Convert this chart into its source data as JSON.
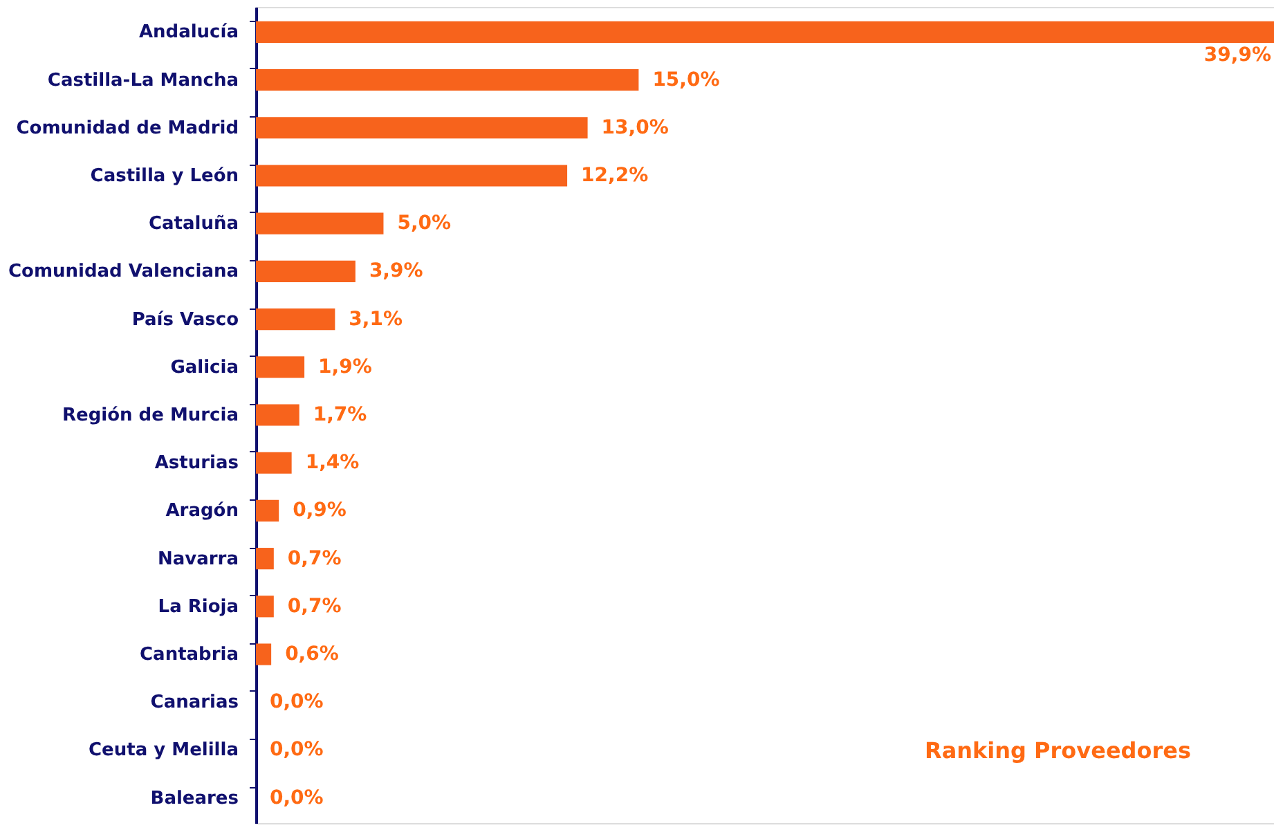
{
  "chart_data": {
    "type": "bar",
    "orientation": "horizontal",
    "title": "Ranking Proveedores",
    "categories": [
      "Andalucía",
      "Castilla-La Mancha",
      "Comunidad de Madrid",
      "Castilla y León",
      "Cataluña",
      "Comunidad Valenciana",
      "País Vasco",
      "Galicia",
      "Región de Murcia",
      "Asturias",
      "Aragón",
      "Navarra",
      "La Rioja",
      "Cantabria",
      "Canarias",
      "Ceuta y Melilla",
      "Baleares"
    ],
    "values": [
      39.9,
      15.0,
      13.0,
      12.2,
      5.0,
      3.9,
      3.1,
      1.9,
      1.7,
      1.4,
      0.9,
      0.7,
      0.7,
      0.6,
      0.0,
      0.0,
      0.0
    ],
    "value_labels": [
      "39,9%",
      "15,0%",
      "13,0%",
      "12,2%",
      "5,0%",
      "3,9%",
      "3,1%",
      "1,9%",
      "1,7%",
      "1,4%",
      "0,9%",
      "0,7%",
      "0,7%",
      "0,6%",
      "0,0%",
      "0,0%",
      "0,0%"
    ],
    "color": "#f7631c",
    "xlim": [
      0,
      39.9
    ],
    "grid": false,
    "tick_labels": "y"
  }
}
